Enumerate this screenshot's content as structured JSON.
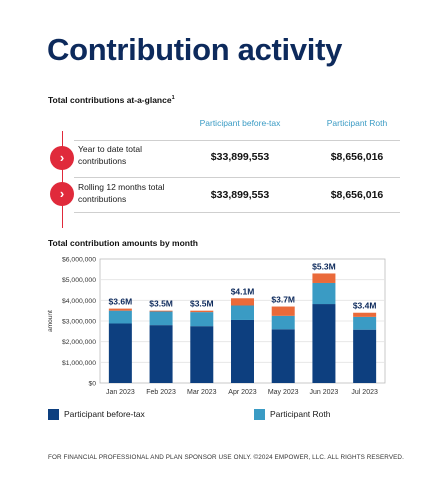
{
  "title": "Contribution activity",
  "glance": {
    "heading": "Total contributions at-a-glance",
    "footnote": "1",
    "columns": [
      "Participant before-tax",
      "Participant Roth"
    ],
    "rows": [
      {
        "label": "Year to date total contributions",
        "before_tax": "$33,899,553",
        "roth": "$8,656,016"
      },
      {
        "label": "Rolling 12 months total contributions",
        "before_tax": "$33,899,553",
        "roth": "$8,656,016"
      }
    ]
  },
  "chart_heading": "Total contribution amounts by month",
  "chart_data": {
    "type": "bar",
    "stacked": true,
    "categories": [
      "Jan 2023",
      "Feb 2023",
      "Mar 2023",
      "Apr 2023",
      "May 2023",
      "Jun 2023",
      "Jul 2023"
    ],
    "series": [
      {
        "name": "Participant before-tax",
        "color": "#0d3f7f",
        "values": [
          2880000,
          2800000,
          2750000,
          3050000,
          2600000,
          3820000,
          2580000
        ]
      },
      {
        "name": "Participant Roth",
        "color": "#3a9bc4",
        "values": [
          620000,
          660000,
          680000,
          700000,
          650000,
          1020000,
          620000
        ]
      },
      {
        "name": "",
        "color": "#ea6a3a",
        "values": [
          100000,
          40000,
          70000,
          350000,
          450000,
          460000,
          200000
        ]
      }
    ],
    "data_labels": [
      "$3.6M",
      "$3.5M",
      "$3.5M",
      "$4.1M",
      "$3.7M",
      "$5.3M",
      "$3.4M"
    ],
    "ylabel": "amount",
    "ylim": [
      0,
      6000000
    ],
    "yticks": [
      0,
      1000000,
      2000000,
      3000000,
      4000000,
      5000000,
      6000000
    ],
    "ytick_labels": [
      "$0",
      "$1,000,000",
      "$2,000,000",
      "$3,000,000",
      "$4,000,000",
      "$5,000,000",
      "$6,000,000"
    ],
    "grid": true,
    "legend": "bottom"
  },
  "footer": "FOR FINANCIAL PROFESSIONAL AND PLAN SPONSOR USE ONLY. ©2024 EMPOWER, LLC. ALL RIGHTS RESERVED."
}
